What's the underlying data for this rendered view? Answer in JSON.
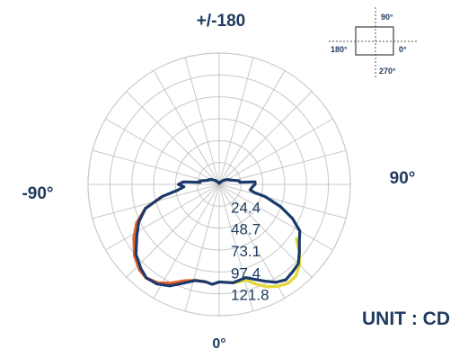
{
  "chart_data": {
    "type": "polar",
    "unit_label": "UNIT : CD",
    "angle_labels": {
      "top": "+/-180",
      "left": "-90°",
      "right": "90°",
      "bottom": "0°"
    },
    "ring_labels": [
      "24.4",
      "48.7",
      "73.1",
      "97.4",
      "121.8"
    ],
    "r_max": 146.2,
    "angle_step_deg": 15,
    "orientation_key": {
      "top": "90°",
      "left": "180°",
      "right": "0°",
      "bottom": "270°"
    },
    "colors": {
      "grid": "#c8c8c8",
      "text": "#1e3a5f",
      "navy": "#1a3a6b",
      "orange": "#e8632a",
      "yellow": "#e3d93a"
    },
    "series": [
      {
        "color": "#1a3a6b",
        "points": [
          [
            0,
            108.6
          ],
          [
            8,
            110.6
          ],
          [
            16,
            108.0
          ],
          [
            20,
            112.2
          ],
          [
            25,
            118.7
          ],
          [
            30,
            125.9
          ],
          [
            35,
            129.6
          ],
          [
            40,
            127.2
          ],
          [
            45,
            124.8
          ],
          [
            50,
            116.7
          ],
          [
            55,
            109.1
          ],
          [
            60,
            103.8
          ],
          [
            65,
            90.4
          ],
          [
            70,
            73.2
          ],
          [
            75,
            53.4
          ],
          [
            77,
            40.5
          ],
          [
            80,
            35.1
          ],
          [
            86,
            37.3
          ],
          [
            90,
            40.0
          ],
          [
            94,
            40.1
          ],
          [
            96,
            23.0
          ],
          [
            100,
            22.8
          ],
          [
            108,
            15.2
          ],
          [
            120,
            10.8
          ],
          [
            135,
            6.2
          ],
          [
            150,
            3.0
          ],
          [
            165,
            1.5
          ],
          [
            180,
            1.0
          ],
          [
            195,
            1.8
          ],
          [
            210,
            3.4
          ],
          [
            225,
            6.3
          ],
          [
            240,
            11.1
          ],
          [
            252,
            14.3
          ],
          [
            260,
            22.0
          ],
          [
            264,
            21.4
          ],
          [
            266,
            40.1
          ],
          [
            270,
            45.5
          ],
          [
            274,
            39.4
          ],
          [
            278,
            46.9
          ],
          [
            282,
            65.0
          ],
          [
            288,
            86.4
          ],
          [
            295,
            98.9
          ],
          [
            302,
            108.3
          ],
          [
            310,
            121.1
          ],
          [
            317,
            128.0
          ],
          [
            322,
            132.0
          ],
          [
            328,
            130.7
          ],
          [
            334,
            125.7
          ],
          [
            340,
            117.0
          ],
          [
            346,
            110.2
          ],
          [
            352,
            109.5
          ],
          [
            356,
            111.5
          ],
          [
            360,
            108.6
          ]
        ]
      },
      {
        "color": "#e8632a",
        "points": [
          [
            282,
            65.0
          ],
          [
            288,
            86.4
          ],
          [
            295,
            101.5
          ],
          [
            302,
            112.1
          ],
          [
            310,
            123.3
          ],
          [
            317,
            130.2
          ],
          [
            322,
            132.2
          ],
          [
            328,
            129.2
          ],
          [
            334,
            122.4
          ],
          [
            340,
            114.3
          ],
          [
            346,
            110.2
          ],
          [
            352,
            109.5
          ]
        ]
      },
      {
        "color": "#e3d93a",
        "points": [
          [
            8,
            110.6
          ],
          [
            16,
            111.0
          ],
          [
            20,
            118.0
          ],
          [
            25,
            125.7
          ],
          [
            30,
            131.0
          ],
          [
            35,
            134.3
          ],
          [
            40,
            133.0
          ],
          [
            45,
            126.8
          ],
          [
            50,
            116.7
          ],
          [
            55,
            105.1
          ]
        ]
      }
    ]
  }
}
